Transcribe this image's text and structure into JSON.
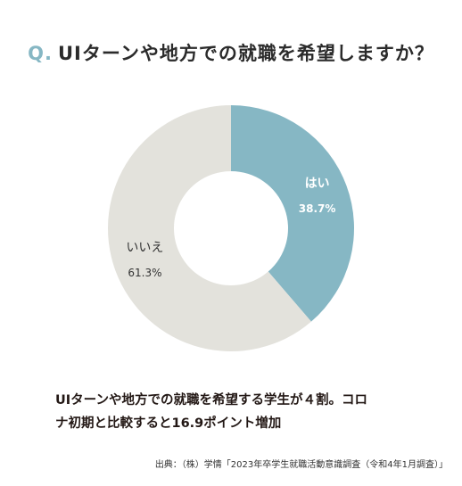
{
  "question": {
    "prefix": "Q.",
    "text": "UIターンや地方での就職を希望しますか？"
  },
  "chart_data": {
    "type": "pie",
    "style": "donut",
    "title": "UIターンや地方での就職を希望しますか？",
    "slices": [
      {
        "label": "はい",
        "value": 38.7,
        "display": "38.7%",
        "color": "#86b7c4",
        "text_color": "#ffffff"
      },
      {
        "label": "いいえ",
        "value": 61.3,
        "display": "61.3%",
        "color": "#e3e2dc",
        "text_color": "#333333"
      }
    ]
  },
  "conclusion": {
    "line1": "UIターンや地方での就職を希望する学生が４割。コロ",
    "line2": "ナ初期と比較すると16.9ポイント増加"
  },
  "source": "出典：（株）学情「2023年卒学生就職活動意識調査（令和4年1月調査）」"
}
